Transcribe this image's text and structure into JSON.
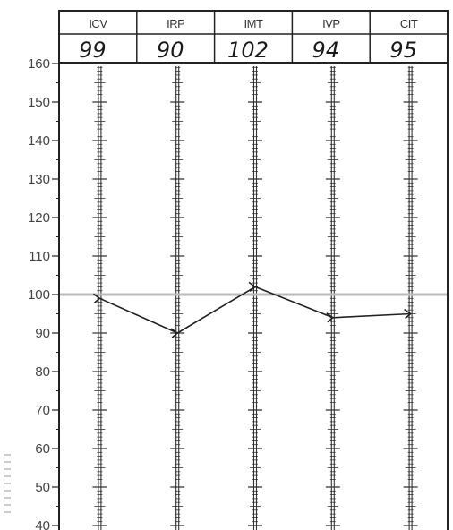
{
  "chart_data": {
    "type": "line",
    "title": "",
    "xlabel": "",
    "ylabel": "",
    "categories": [
      "ICV",
      "IRP",
      "IMT",
      "IVP",
      "CIT"
    ],
    "scores_written": [
      "99",
      "90",
      "102",
      "94",
      "95"
    ],
    "series": [
      {
        "values": [
          99,
          90,
          102,
          94,
          95
        ]
      }
    ],
    "y_ticks": [
      40,
      50,
      60,
      70,
      80,
      90,
      100,
      110,
      120,
      130,
      140,
      150,
      160
    ],
    "ylim": [
      40,
      160
    ],
    "reference_line": 100,
    "grid": false,
    "legend": "none"
  },
  "colors": {
    "frame": "#222222",
    "reference_line": "#bbbbbb",
    "line": "#222222",
    "axis_text": "#444444",
    "scale_column": "#333333"
  }
}
